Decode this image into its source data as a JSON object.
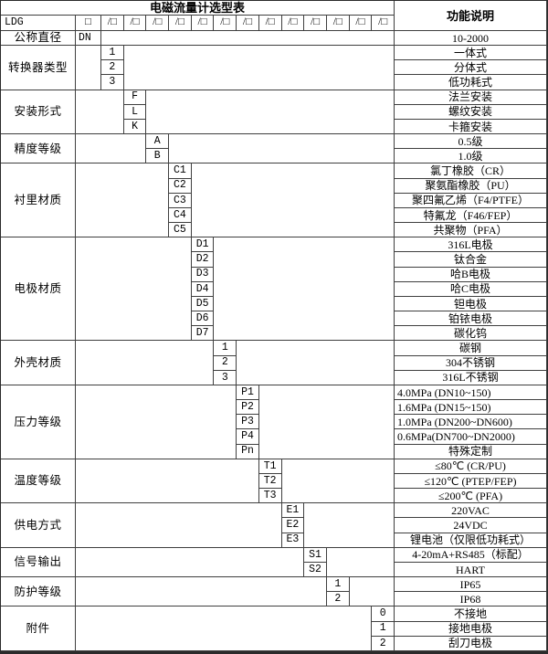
{
  "title": "电磁流量计选型表",
  "function_header": "功能说明",
  "model_prefix": "LDG",
  "code_box": "□",
  "code_slot": "/□",
  "code_slot_count": 13,
  "colors": {
    "border": "#3f3f3f",
    "outer_border": "#2b2b2b",
    "text": "#000000",
    "background": "#ffffff"
  },
  "groups": [
    {
      "label": "公称直径",
      "slot": 0,
      "items": [
        {
          "code": "DN",
          "desc": "10-2000",
          "code_align": "left"
        }
      ]
    },
    {
      "label": "转换器类型",
      "slot": 1,
      "items": [
        {
          "code": "1",
          "desc": "一体式"
        },
        {
          "code": "2",
          "desc": "分体式"
        },
        {
          "code": "3",
          "desc": "低功耗式"
        }
      ]
    },
    {
      "label": "安装形式",
      "slot": 2,
      "items": [
        {
          "code": "F",
          "desc": "法兰安装"
        },
        {
          "code": "L",
          "desc": "螺纹安装"
        },
        {
          "code": "K",
          "desc": "卡箍安装"
        }
      ]
    },
    {
      "label": "精度等级",
      "slot": 3,
      "items": [
        {
          "code": "A",
          "desc": "0.5级"
        },
        {
          "code": "B",
          "desc": "1.0级"
        }
      ]
    },
    {
      "label": "衬里材质",
      "slot": 4,
      "items": [
        {
          "code": "C1",
          "desc": "氯丁橡胶（CR）"
        },
        {
          "code": "C2",
          "desc": "聚氨酯橡胶（PU）"
        },
        {
          "code": "C3",
          "desc": "聚四氟乙烯（F4/PTFE）"
        },
        {
          "code": "C4",
          "desc": "特氟龙（F46/FEP）"
        },
        {
          "code": "C5",
          "desc": "共聚物（PFA）"
        }
      ]
    },
    {
      "label": "电极材质",
      "slot": 5,
      "items": [
        {
          "code": "D1",
          "desc": "316L电极"
        },
        {
          "code": "D2",
          "desc": "钛合金"
        },
        {
          "code": "D3",
          "desc": "哈B电极"
        },
        {
          "code": "D4",
          "desc": "哈C电极"
        },
        {
          "code": "D5",
          "desc": "钽电极"
        },
        {
          "code": "D6",
          "desc": "铂铱电极"
        },
        {
          "code": "D7",
          "desc": "碳化钨"
        }
      ]
    },
    {
      "label": "外壳材质",
      "slot": 6,
      "items": [
        {
          "code": "1",
          "desc": "碳钢"
        },
        {
          "code": "2",
          "desc": "304不锈钢"
        },
        {
          "code": "3",
          "desc": "316L不锈钢"
        }
      ]
    },
    {
      "label": "压力等级",
      "slot": 7,
      "items": [
        {
          "code": "P1",
          "desc": "4.0MPa (DN10~150)",
          "desc_align": "left"
        },
        {
          "code": "P2",
          "desc": "1.6MPa (DN15~150)",
          "desc_align": "left"
        },
        {
          "code": "P3",
          "desc": "1.0MPa (DN200~DN600)",
          "desc_align": "left"
        },
        {
          "code": "P4",
          "desc": "0.6MPa(DN700~DN2000)",
          "desc_align": "left"
        },
        {
          "code": "Pn",
          "desc": "特殊定制"
        }
      ]
    },
    {
      "label": "温度等级",
      "slot": 8,
      "items": [
        {
          "code": "T1",
          "desc": "≤80℃ (CR/PU)"
        },
        {
          "code": "T2",
          "desc": "≤120℃ (PTEP/FEP)"
        },
        {
          "code": "T3",
          "desc": "≤200℃ (PFA)"
        }
      ]
    },
    {
      "label": "供电方式",
      "slot": 9,
      "items": [
        {
          "code": "E1",
          "desc": "220VAC"
        },
        {
          "code": "E2",
          "desc": "24VDC"
        },
        {
          "code": "E3",
          "desc": "锂电池（仅限低功耗式）"
        }
      ]
    },
    {
      "label": "信号输出",
      "slot": 10,
      "items": [
        {
          "code": "S1",
          "desc": "4-20mA+RS485（标配）"
        },
        {
          "code": "S2",
          "desc": "HART"
        }
      ]
    },
    {
      "label": "防护等级",
      "slot": 11,
      "items": [
        {
          "code": "1",
          "desc": "IP65"
        },
        {
          "code": "2",
          "desc": "IP68"
        }
      ]
    },
    {
      "label": "附件",
      "slot": 13,
      "items": [
        {
          "code": "0",
          "desc": "不接地"
        },
        {
          "code": "1",
          "desc": "接地电极"
        },
        {
          "code": "2",
          "desc": "刮刀电极"
        }
      ]
    }
  ]
}
